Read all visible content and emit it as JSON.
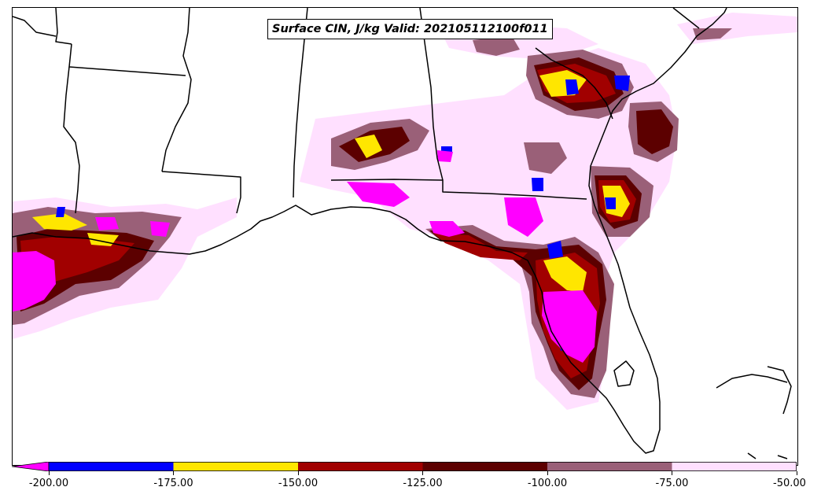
{
  "title": "Surface CIN, J/kg Valid: 202105112100f011",
  "colorbar": {
    "min": -200,
    "max": -50,
    "extend": "min",
    "extension_color": "#ff00ff",
    "ticks": [
      "-200.00",
      "-175.00",
      "-150.00",
      "-125.00",
      "-100.00",
      "-75.00",
      "-50.00"
    ],
    "bins": [
      {
        "from": -200,
        "to": -175,
        "color": "#0000ff"
      },
      {
        "from": -175,
        "to": -150,
        "color": "#ffe600"
      },
      {
        "from": -150,
        "to": -125,
        "color": "#a10000"
      },
      {
        "from": -125,
        "to": -100,
        "color": "#5c0000"
      },
      {
        "from": -100,
        "to": -75,
        "color": "#9a6078"
      },
      {
        "from": -75,
        "to": -50,
        "color": "#ffe0ff"
      }
    ]
  },
  "map": {
    "region": "US Gulf Coast and Florida",
    "background": "#ffffff",
    "boundary_color": "#000000"
  }
}
